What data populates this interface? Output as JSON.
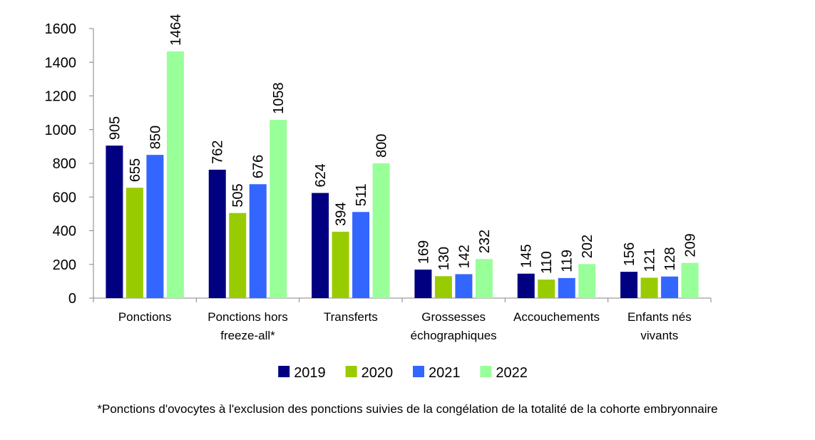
{
  "chart_data": {
    "type": "bar",
    "categories": [
      [
        "Ponctions"
      ],
      [
        "Ponctions hors",
        "freeze-all*"
      ],
      [
        "Transferts"
      ],
      [
        "Grossesses",
        "échographiques"
      ],
      [
        "Accouchements"
      ],
      [
        "Enfants nés",
        "vivants"
      ]
    ],
    "series": [
      {
        "name": "2019",
        "color": "#000080",
        "values": [
          905,
          762,
          624,
          169,
          145,
          156
        ]
      },
      {
        "name": "2020",
        "color": "#99CC00",
        "values": [
          655,
          505,
          394,
          130,
          110,
          121
        ]
      },
      {
        "name": "2021",
        "color": "#3366FF",
        "values": [
          850,
          676,
          511,
          142,
          119,
          128
        ]
      },
      {
        "name": "2022",
        "color": "#99FF99",
        "values": [
          1464,
          1058,
          800,
          232,
          202,
          209
        ]
      }
    ],
    "ylim": [
      0,
      1600
    ],
    "yticks": [
      0,
      200,
      400,
      600,
      800,
      1000,
      1200,
      1400,
      1600
    ],
    "grid": false,
    "legend": "bottom",
    "title": "",
    "xlabel": "",
    "ylabel": ""
  },
  "footnote": "*Ponctions d'ovocytes à l'exclusion des ponctions suivies de la congélation de la totalité de la cohorte embryonnaire"
}
